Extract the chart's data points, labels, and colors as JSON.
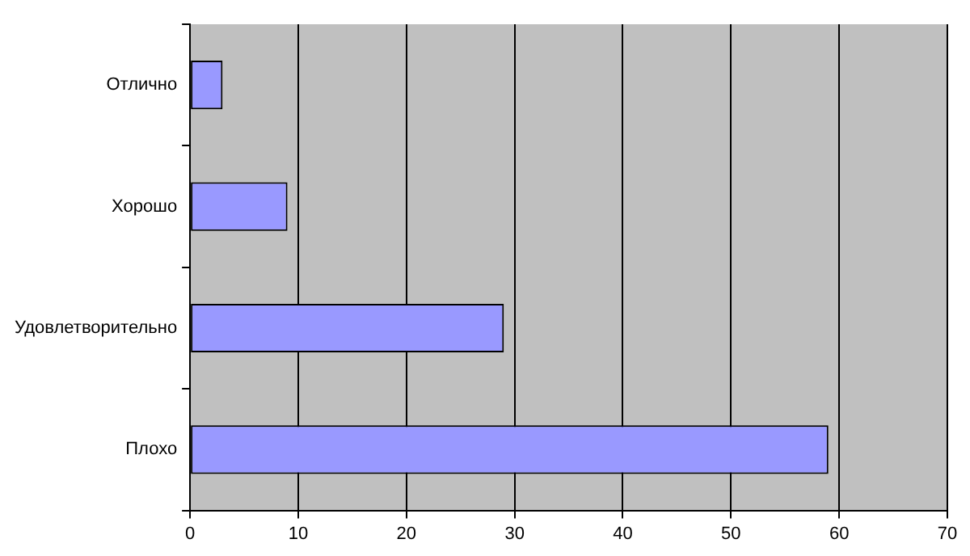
{
  "chart_data": {
    "type": "bar",
    "orientation": "horizontal",
    "categories": [
      "Отлично",
      "Хорошо",
      "Удовлетворительно",
      "Плохо"
    ],
    "values": [
      3,
      9,
      29,
      59
    ],
    "color": "#9999ff",
    "xlim": [
      0,
      70
    ],
    "xticks": [
      0,
      10,
      20,
      30,
      40,
      50,
      60,
      70
    ],
    "grid": "x",
    "legend": false
  }
}
